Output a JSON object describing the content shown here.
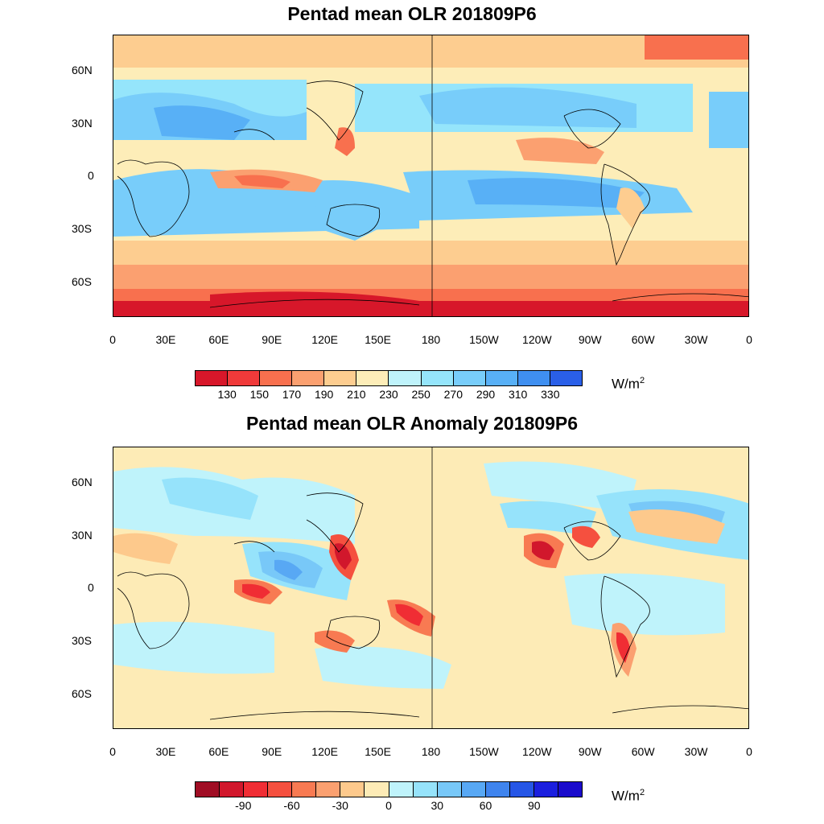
{
  "panels": [
    {
      "title": "Pentad mean OLR 201809P6",
      "units_base": "W/m",
      "units_exp": "2",
      "colorbar": {
        "colors": [
          "#d7172a",
          "#f03a3a",
          "#f8704e",
          "#fba070",
          "#fdcd90",
          "#fdedb8",
          "#bff3fb",
          "#95e5fb",
          "#78cdfa",
          "#58b0f6",
          "#3f8ff0",
          "#2a5fe8"
        ],
        "labels": [
          "130",
          "150",
          "170",
          "190",
          "210",
          "230",
          "250",
          "270",
          "290",
          "310",
          "330"
        ]
      }
    },
    {
      "title": "Pentad mean OLR Anomaly 201809P6",
      "units_base": "W/m",
      "units_exp": "2",
      "colorbar": {
        "colors": [
          "#a00d24",
          "#d1172c",
          "#f02d34",
          "#f5503f",
          "#f87a52",
          "#fba070",
          "#fdc98c",
          "#fdebb6",
          "#bff3fb",
          "#96e3fb",
          "#78c8f8",
          "#58a8f4",
          "#3f84ee",
          "#2656e6",
          "#1b1fdf",
          "#1a0bcc"
        ],
        "labels": [
          "-90",
          "-60",
          "-30",
          "0",
          "30",
          "60",
          "90"
        ]
      }
    }
  ],
  "x_tick_labels": [
    "0",
    "30E",
    "60E",
    "90E",
    "120E",
    "150E",
    "180",
    "150W",
    "120W",
    "90W",
    "60W",
    "30W",
    "0"
  ],
  "y_tick_labels": [
    "60N",
    "30N",
    "0",
    "30S",
    "60S"
  ]
}
